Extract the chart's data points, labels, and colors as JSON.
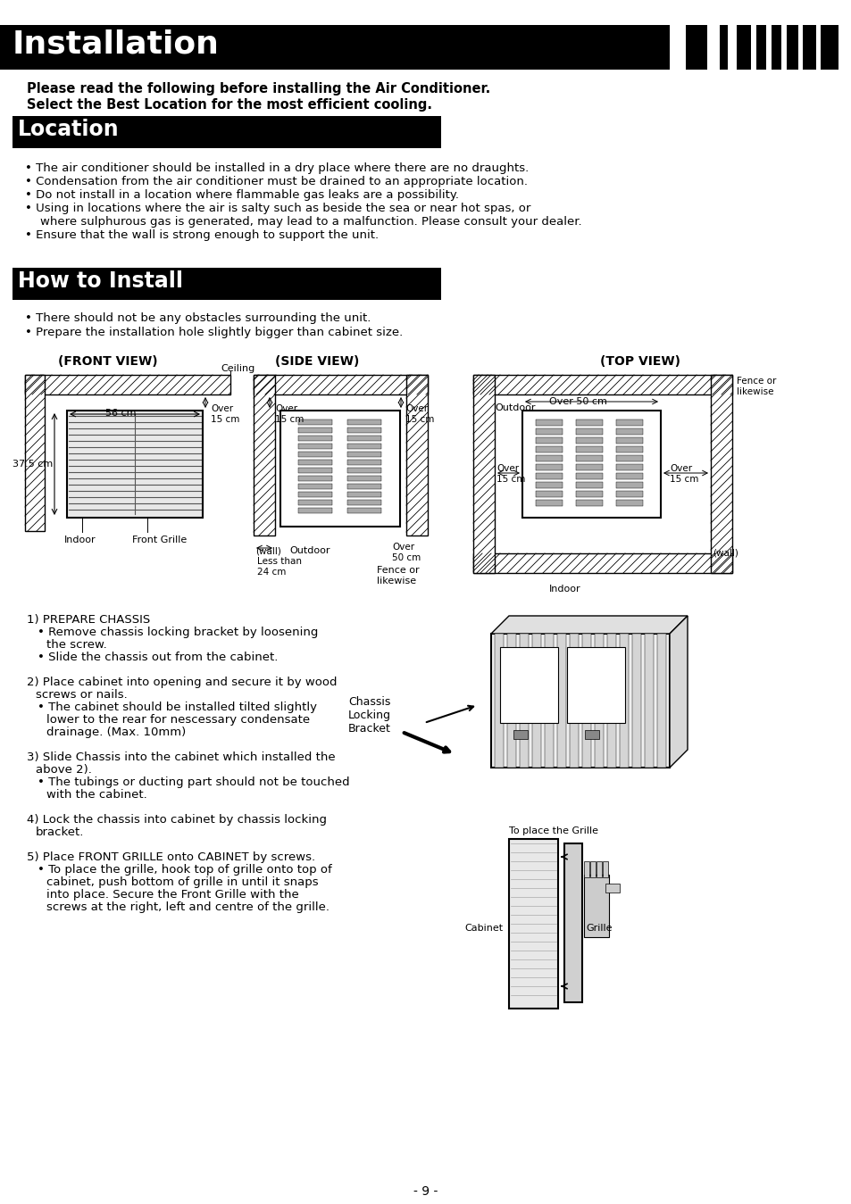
{
  "title": "Installation",
  "subtitle1": "Please read the following before installing the Air Conditioner.",
  "subtitle2": "Select the Best Location for the most efficient cooling.",
  "section1_title": "Location",
  "location_bullets": [
    "The air conditioner should be installed in a dry place where there are no draughts.",
    "Condensation from the air conditioner must be drained to an appropriate location.",
    "Do not install in a location where flammable gas leaks are a possibility.",
    "Using in locations where the air is salty such as beside the sea or near hot spas, or",
    "    where sulphurous gas is generated, may lead to a malfunction. Please consult your dealer.",
    "Ensure that the wall is strong enough to support the unit."
  ],
  "section2_title": "How to Install",
  "install_bullets": [
    "There should not be any obstacles surrounding the unit.",
    "Prepare the installation hole slightly bigger than cabinet size."
  ],
  "step1_title": "1) PREPARE CHASSIS",
  "step1_b1": "Remove chassis locking bracket by loosening",
  "step1_b1c": "the screw.",
  "step1_b2": "Slide the chassis out from the cabinet.",
  "step2a": "2) Place cabinet into opening and secure it by wood",
  "step2b": "    screws or nails.",
  "step2c": "The cabinet should be installed tilted slightly",
  "step2d": "lower to the rear for nescessary condensate",
  "step2e": "drainage. (Max. 10mm)",
  "step3a": "3) Slide Chassis into the cabinet which installed the",
  "step3b": "    above 2).",
  "step3c": "The tubings or ducting part should not be touched",
  "step3d": "with the cabinet.",
  "step4a": "4) Lock the chassis into cabinet by chassis locking",
  "step4b": "    bracket.",
  "step5a": "5) Place FRONT GRILLE onto CABINET by screws.",
  "step5b": "To place the grille, hook top of grille onto top of",
  "step5c": "cabinet, push bottom of grille in until it snaps",
  "step5d": "into place. Secure the Front Grille with the",
  "step5e": "screws at the right, left and centre of the grille.",
  "chassis_label": "Chassis\nLocking\nBracket",
  "grille_label_top": "To place the Grille",
  "cabinet_label": "Cabinet",
  "grille_label": "Grille",
  "page_number": "- 9 -"
}
